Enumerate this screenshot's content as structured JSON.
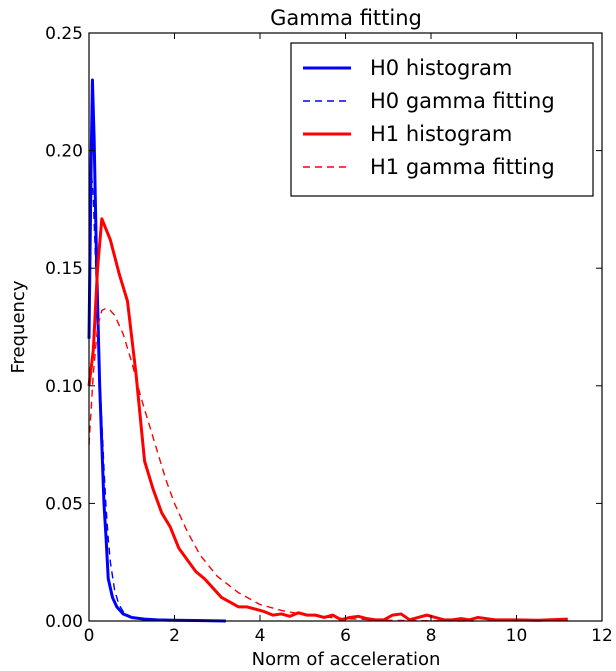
{
  "chart_data": {
    "type": "line",
    "title": "Gamma fitting",
    "xlabel": "Norm of acceleration",
    "ylabel": "Frequency",
    "xlim": [
      0,
      12
    ],
    "ylim": [
      0,
      0.25
    ],
    "xticks": [
      "0",
      "2",
      "4",
      "6",
      "8",
      "10",
      "12"
    ],
    "yticks": [
      "0.00",
      "0.05",
      "0.10",
      "0.15",
      "0.20",
      "0.25"
    ],
    "grid": false,
    "legend_position": "top-right",
    "series": [
      {
        "name": "H0 histogram",
        "color": "#0000ff",
        "style": "solid",
        "points": [
          [
            0.0,
            0.12
          ],
          [
            0.05,
            0.195
          ],
          [
            0.08,
            0.23
          ],
          [
            0.12,
            0.205
          ],
          [
            0.18,
            0.15
          ],
          [
            0.25,
            0.1
          ],
          [
            0.3,
            0.075
          ],
          [
            0.35,
            0.05
          ],
          [
            0.4,
            0.035
          ],
          [
            0.45,
            0.018
          ],
          [
            0.55,
            0.01
          ],
          [
            0.65,
            0.006
          ],
          [
            0.8,
            0.003
          ],
          [
            1.0,
            0.0015
          ],
          [
            1.3,
            0.0008
          ],
          [
            1.6,
            0.0005
          ],
          [
            2.0,
            0.0003
          ],
          [
            2.5,
            0.0002
          ],
          [
            3.2,
            0.0
          ]
        ]
      },
      {
        "name": "H0 gamma fitting",
        "color": "#0000ff",
        "style": "dashed",
        "points": [
          [
            0.02,
            0.15
          ],
          [
            0.06,
            0.19
          ],
          [
            0.1,
            0.18
          ],
          [
            0.15,
            0.155
          ],
          [
            0.2,
            0.13
          ],
          [
            0.25,
            0.105
          ],
          [
            0.3,
            0.085
          ],
          [
            0.35,
            0.065
          ],
          [
            0.4,
            0.048
          ],
          [
            0.45,
            0.035
          ],
          [
            0.5,
            0.025
          ],
          [
            0.6,
            0.013
          ],
          [
            0.7,
            0.007
          ],
          [
            0.8,
            0.004
          ],
          [
            1.0,
            0.0015
          ],
          [
            1.3,
            0.0005
          ],
          [
            1.6,
            0.0002
          ],
          [
            2.0,
            0.0
          ]
        ]
      },
      {
        "name": "H1 histogram",
        "color": "#ff0000",
        "style": "solid",
        "points": [
          [
            0.0,
            0.1
          ],
          [
            0.1,
            0.115
          ],
          [
            0.2,
            0.15
          ],
          [
            0.3,
            0.171
          ],
          [
            0.5,
            0.162
          ],
          [
            0.7,
            0.148
          ],
          [
            0.9,
            0.136
          ],
          [
            1.1,
            0.105
          ],
          [
            1.3,
            0.068
          ],
          [
            1.5,
            0.056
          ],
          [
            1.7,
            0.046
          ],
          [
            1.9,
            0.04
          ],
          [
            2.1,
            0.031
          ],
          [
            2.3,
            0.026
          ],
          [
            2.5,
            0.021
          ],
          [
            2.7,
            0.018
          ],
          [
            2.9,
            0.014
          ],
          [
            3.1,
            0.01
          ],
          [
            3.3,
            0.008
          ],
          [
            3.5,
            0.006
          ],
          [
            3.7,
            0.006
          ],
          [
            3.9,
            0.005
          ],
          [
            4.1,
            0.004
          ],
          [
            4.3,
            0.0025
          ],
          [
            4.5,
            0.003
          ],
          [
            4.7,
            0.002
          ],
          [
            4.9,
            0.0035
          ],
          [
            5.1,
            0.0025
          ],
          [
            5.3,
            0.0025
          ],
          [
            5.5,
            0.0015
          ],
          [
            5.7,
            0.0025
          ],
          [
            5.9,
            0.0005
          ],
          [
            6.1,
            0.0015
          ],
          [
            6.3,
            0.002
          ],
          [
            6.5,
            0.001
          ],
          [
            6.7,
            0.0005
          ],
          [
            6.9,
            0.0005
          ],
          [
            7.1,
            0.0025
          ],
          [
            7.3,
            0.003
          ],
          [
            7.5,
            0.0005
          ],
          [
            7.7,
            0.0015
          ],
          [
            7.9,
            0.0025
          ],
          [
            8.1,
            0.0015
          ],
          [
            8.3,
            0.0005
          ],
          [
            8.5,
            0.0005
          ],
          [
            8.7,
            0.001
          ],
          [
            8.9,
            0.0005
          ],
          [
            9.1,
            0.0015
          ],
          [
            9.5,
            0.0005
          ],
          [
            10.0,
            0.0005
          ],
          [
            10.5,
            0.0003
          ],
          [
            11.2,
            0.0008
          ]
        ]
      },
      {
        "name": "H1 gamma fitting",
        "color": "#ff0000",
        "style": "dashed",
        "points": [
          [
            0.0,
            0.075
          ],
          [
            0.1,
            0.105
          ],
          [
            0.2,
            0.125
          ],
          [
            0.3,
            0.132
          ],
          [
            0.4,
            0.133
          ],
          [
            0.5,
            0.132
          ],
          [
            0.6,
            0.13
          ],
          [
            0.8,
            0.122
          ],
          [
            1.0,
            0.11
          ],
          [
            1.2,
            0.096
          ],
          [
            1.4,
            0.084
          ],
          [
            1.6,
            0.072
          ],
          [
            1.8,
            0.06
          ],
          [
            2.0,
            0.05
          ],
          [
            2.3,
            0.038
          ],
          [
            2.6,
            0.028
          ],
          [
            3.0,
            0.019
          ],
          [
            3.5,
            0.012
          ],
          [
            4.0,
            0.007
          ],
          [
            4.5,
            0.0045
          ],
          [
            5.0,
            0.0028
          ],
          [
            5.5,
            0.0017
          ],
          [
            6.0,
            0.001
          ],
          [
            7.0,
            0.0003
          ],
          [
            8.0,
            0.0001
          ],
          [
            9.0,
            0.0
          ]
        ]
      }
    ]
  }
}
